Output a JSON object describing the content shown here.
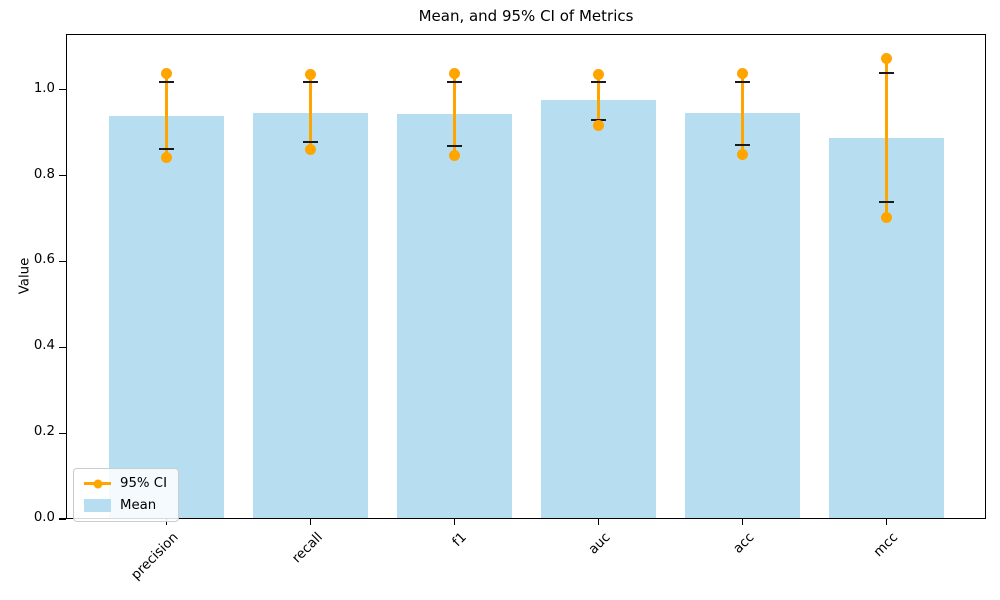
{
  "chart_data": {
    "type": "bar",
    "title": "Mean, and 95% CI of Metrics",
    "xlabel": "",
    "ylabel": "Value",
    "categories": [
      "precision",
      "recall",
      "f1",
      "auc",
      "acc",
      "mcc"
    ],
    "series": [
      {
        "name": "Mean",
        "type": "bar",
        "color": "#b6def0",
        "values": [
          0.94,
          0.947,
          0.943,
          0.976,
          0.945,
          0.888
        ]
      },
      {
        "name": "95% CI",
        "type": "errorbar",
        "color": "#FFA500",
        "cap_color": "#1a1a1a",
        "ci_low": [
          0.842,
          0.862,
          0.848,
          0.916,
          0.85,
          0.702
        ],
        "ci_high": [
          1.039,
          1.036,
          1.037,
          1.035,
          1.038,
          1.074
        ],
        "cap_low": [
          0.862,
          0.878,
          0.869,
          0.93,
          0.872,
          0.738
        ],
        "cap_high": [
          1.019,
          1.018,
          1.018,
          1.018,
          1.018,
          1.039
        ]
      }
    ],
    "ylim": [
      0,
      1.13
    ],
    "yticks": [
      "0.0",
      "0.2",
      "0.4",
      "0.6",
      "0.8",
      "1.0"
    ],
    "grid": false,
    "x_tick_rotation": 45,
    "legend": {
      "position": "lower left",
      "entries": [
        "95% CI",
        "Mean"
      ]
    }
  }
}
